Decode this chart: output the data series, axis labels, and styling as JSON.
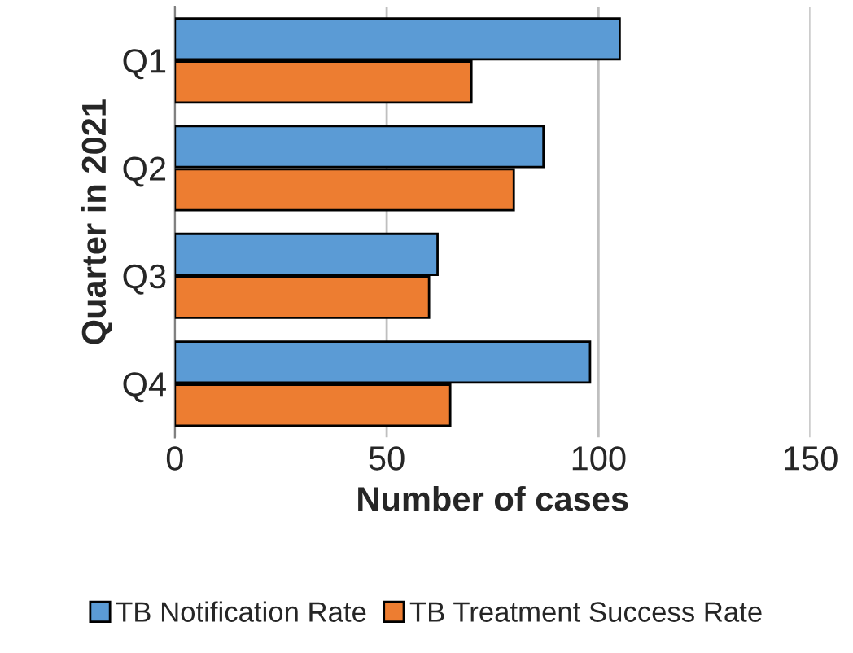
{
  "chart_data": {
    "type": "bar",
    "orientation": "horizontal",
    "xlabel": "Number of cases",
    "ylabel": "Quarter in 2021",
    "categories": [
      "Q1",
      "Q2",
      "Q3",
      "Q4"
    ],
    "series": [
      {
        "name": "TB Notification Rate",
        "color": "#5b9bd5",
        "values": [
          105,
          87,
          62,
          98
        ]
      },
      {
        "name": "TB Treatment Success Rate",
        "color": "#ed7d31",
        "values": [
          70,
          80,
          60,
          65
        ]
      }
    ],
    "xlim": [
      0,
      150
    ],
    "xticks": [
      0,
      50,
      100,
      150
    ],
    "grid": "x",
    "legend": "bottom"
  }
}
